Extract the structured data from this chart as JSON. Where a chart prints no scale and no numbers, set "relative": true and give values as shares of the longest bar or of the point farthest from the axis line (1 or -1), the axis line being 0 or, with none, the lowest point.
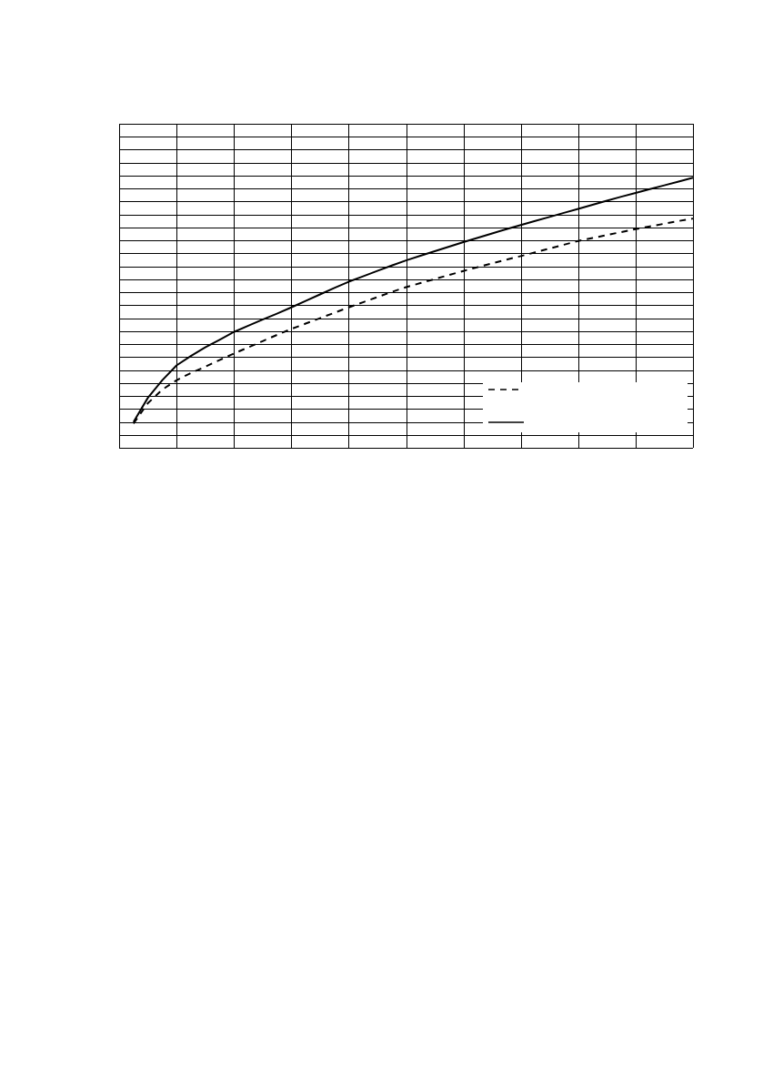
{
  "chart_data": {
    "type": "line",
    "relative": true,
    "grid": true,
    "marker": "none",
    "categories": [
      null,
      null,
      null,
      null,
      null,
      null,
      null,
      null,
      null,
      null,
      null,
      null,
      null,
      null,
      null,
      null,
      null,
      null,
      null,
      null,
      null,
      null,
      null,
      null,
      null,
      null,
      null,
      null,
      null,
      null,
      null,
      null,
      null,
      null,
      null,
      null,
      null,
      null,
      null,
      null,
      null
    ],
    "series": [
      {
        "color": "#000000",
        "line_style": "dashed",
        "values": [
          null,
          0.09,
          0.165,
          0.215,
          0.25,
          0.277,
          0.3,
          0.325,
          0.349,
          0.372,
          0.395,
          0.418,
          0.44,
          0.46,
          0.48,
          0.5,
          0.52,
          0.539,
          0.558,
          0.577,
          0.595,
          0.61,
          0.625,
          0.64,
          0.655,
          0.669,
          0.683,
          0.697,
          0.71,
          0.724,
          0.738,
          0.752,
          0.766,
          0.777,
          0.788,
          0.799,
          0.81,
          0.82,
          0.83,
          0.84,
          0.849
        ]
      },
      {
        "color": "#000000",
        "line_style": "solid",
        "values": [
          null,
          0.095,
          0.185,
          0.25,
          0.305,
          0.34,
          0.372,
          0.4,
          0.429,
          0.452,
          0.475,
          0.497,
          0.52,
          0.544,
          0.568,
          0.592,
          0.615,
          0.635,
          0.655,
          0.675,
          0.694,
          0.711,
          0.728,
          0.745,
          0.762,
          0.778,
          0.794,
          0.81,
          0.825,
          0.84,
          0.855,
          0.87,
          0.885,
          0.9,
          0.915,
          0.93,
          0.944,
          0.958,
          0.972,
          0.986,
          1
        ]
      }
    ]
  }
}
